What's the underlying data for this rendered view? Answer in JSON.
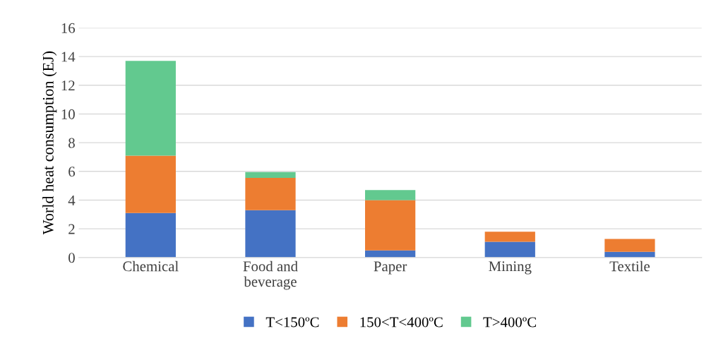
{
  "chart_data": {
    "type": "bar",
    "stacked": true,
    "ylabel": "World heat consumption (EJ)",
    "categories": [
      "Chemical",
      "Food and beverage",
      "Paper",
      "Mining",
      "Textile"
    ],
    "series": [
      {
        "name": "T<150ºC",
        "color": "#4472c4",
        "values": [
          3.1,
          3.3,
          0.5,
          1.1,
          0.4
        ]
      },
      {
        "name": "150<T<400ºC",
        "color": "#ed7d31",
        "values": [
          4.0,
          2.25,
          3.5,
          0.7,
          0.9
        ]
      },
      {
        "name": "T>400ºC",
        "color": "#62c98f",
        "values": [
          6.6,
          0.4,
          0.7,
          0,
          0
        ]
      }
    ],
    "ylim": [
      0,
      16
    ],
    "yticks": [
      0,
      2,
      4,
      6,
      8,
      10,
      12,
      14,
      16
    ],
    "grid": "y",
    "legend": "bottom"
  }
}
